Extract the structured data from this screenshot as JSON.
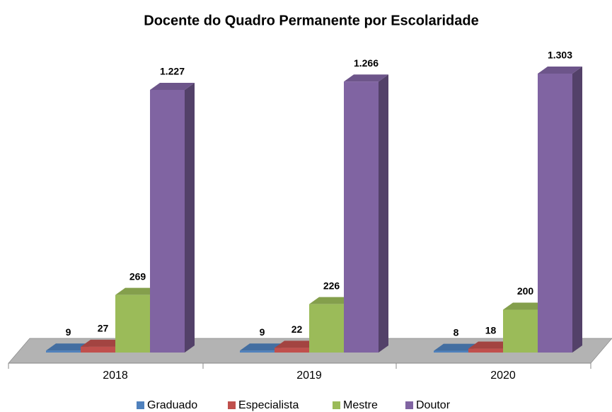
{
  "chart_data": {
    "type": "bar3d",
    "title": "Docente do Quadro Permanente por Escolaridade",
    "categories": [
      "2018",
      "2019",
      "2020"
    ],
    "series": [
      {
        "name": "Graduado",
        "color": "#4f81bd",
        "values": [
          9,
          9,
          8
        ]
      },
      {
        "name": "Especialista",
        "color": "#c0504d",
        "values": [
          27,
          22,
          18
        ]
      },
      {
        "name": "Mestre",
        "color": "#9bbb59",
        "values": [
          269,
          226,
          200
        ]
      },
      {
        "name": "Doutor",
        "color": "#8064a2",
        "values": [
          1227,
          1266,
          1303
        ],
        "value_labels": [
          "1.227",
          "1.266",
          "1.303"
        ]
      }
    ],
    "legend": "bottom"
  }
}
